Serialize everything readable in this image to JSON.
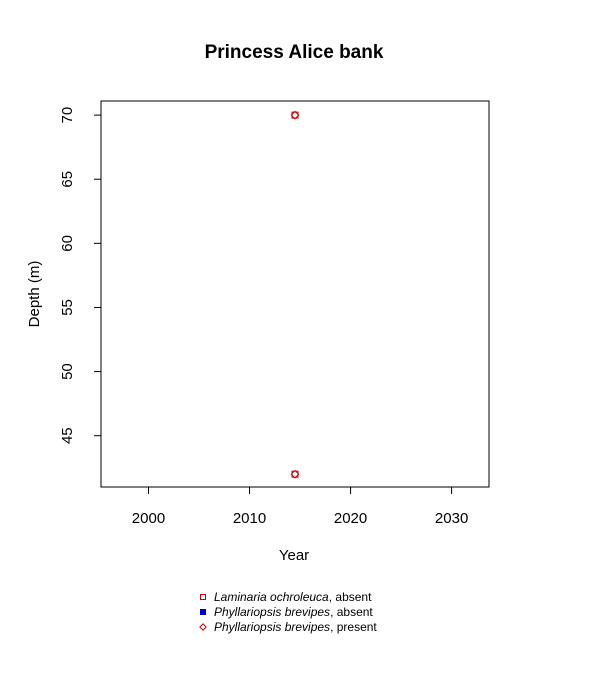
{
  "chart_data": {
    "type": "scatter",
    "title": "Princess Alice bank",
    "xlabel": "Year",
    "ylabel": "Depth (m)",
    "xlim": [
      1995.3,
      2033.7
    ],
    "ylim": [
      41.0,
      71.1
    ],
    "x_ticks": [
      2000,
      2010,
      2020,
      2030
    ],
    "y_ticks": [
      45,
      50,
      55,
      60,
      65,
      70
    ],
    "grid": false,
    "legend_position": "bottom-center",
    "series": [
      {
        "name_italic": "Laminaria ochroleuca",
        "name_suffix": ", absent",
        "marker": "square-open",
        "color": "#cc0000",
        "points": [
          {
            "x": 2014.5,
            "y": 70
          },
          {
            "x": 2014.5,
            "y": 42
          }
        ]
      },
      {
        "name_italic": "Phyllariopsis brevipes",
        "name_suffix": ", absent",
        "marker": "square-filled",
        "color": "#0000cc",
        "points": []
      },
      {
        "name_italic": "Phyllariopsis brevipes",
        "name_suffix": ", present",
        "marker": "diamond-open",
        "color": "#cc0000",
        "points": [
          {
            "x": 2014.5,
            "y": 70
          },
          {
            "x": 2014.5,
            "y": 42
          }
        ]
      }
    ]
  }
}
